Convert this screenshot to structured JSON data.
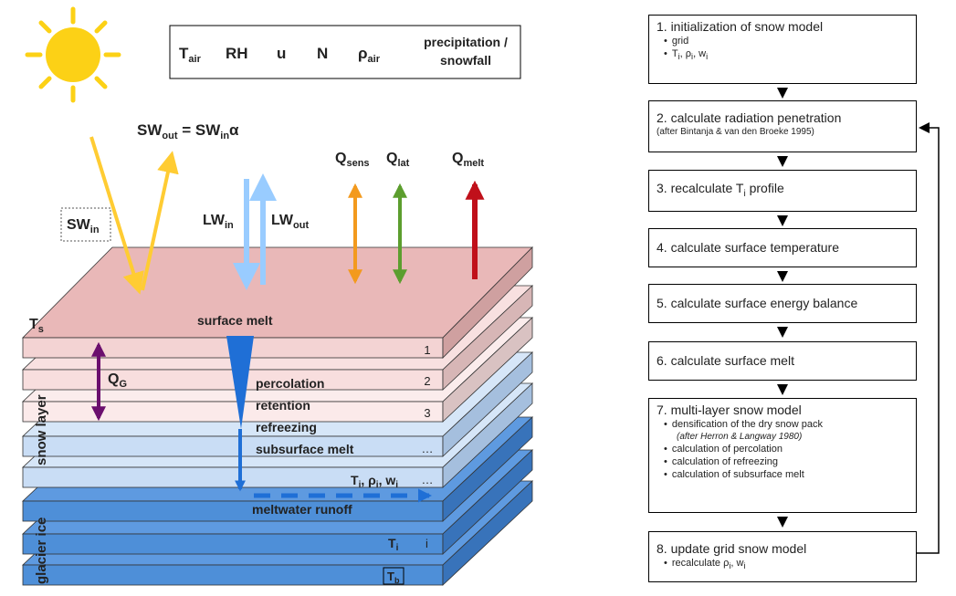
{
  "vars": {
    "tair": "T",
    "tair_sub": "air",
    "rh": "RH",
    "u": "u",
    "n": "N",
    "rho": "ρ",
    "rho_sub": "air",
    "precip1": "precipitation /",
    "precip2": "snowfall"
  },
  "sw_eq": {
    "a": "SW",
    "a_sub": "out",
    "eq": " = SW",
    "eq_sub": "in",
    "alpha": "α"
  },
  "swin": {
    "base": "SW",
    "sub": "in"
  },
  "lwin": {
    "base": "LW",
    "sub": "in"
  },
  "lwout": {
    "base": "LW",
    "sub": "out"
  },
  "qsens": {
    "base": "Q",
    "sub": "sens"
  },
  "qlat": {
    "base": "Q",
    "sub": "lat"
  },
  "qmelt": {
    "base": "Q",
    "sub": "melt"
  },
  "ts": {
    "base": "T",
    "sub": "s"
  },
  "qg": {
    "base": "Q",
    "sub": "G"
  },
  "labels": {
    "surface_melt": "surface melt",
    "percolation": "percolation",
    "retention": "retention",
    "refreezing": "refreezing",
    "subsurface_melt": "subsurface melt",
    "meltwater_runoff": "meltwater runoff",
    "snow_layer": "snow layer",
    "glacier_ice": "glacier ice",
    "tprw": "T",
    "tprw_rest": ", ρ",
    "tprw_rest2": ", w",
    "sub_i": "i",
    "ti": "T",
    "tb": "T",
    "tb_sub": "b",
    "i": "i"
  },
  "layer_numbers": [
    "1",
    "2",
    "3",
    "…",
    "…"
  ],
  "colors": {
    "sun": "#FCD116",
    "sw_arrow": "#FFCC33",
    "lw_arrow": "#99CCFF",
    "qsens": "#F39A1E",
    "qlat": "#5C9E2E",
    "qmelt": "#C0101A",
    "qg": "#6B0F6E",
    "water": "#1F6FD6",
    "surface": "#E9B8B8",
    "snow": "#C9DDF5",
    "ice": "#4E8FD8"
  },
  "flow": {
    "step1": {
      "title": "1. initialization of snow model",
      "items": [
        "grid"
      ],
      "vars": "T"
    },
    "step2": {
      "title": "2. calculate radiation penetration",
      "note": "(after Bintanja & van den Broeke 1995)"
    },
    "step3": {
      "title_a": "3. recalculate T",
      "title_sub": "i",
      "title_b": " profile"
    },
    "step4": {
      "title": "4. calculate surface temperature"
    },
    "step5": {
      "title": "5. calculate surface energy balance"
    },
    "step6": {
      "title": "6. calculate surface melt"
    },
    "step7": {
      "title": "7. multi-layer snow model",
      "items": [
        "densification of the dry snow pack"
      ],
      "note": "(after Herron & Langway 1980)",
      "items2": [
        "calculation of percolation",
        "calculation of refreezing",
        "calculation of subsurface melt"
      ]
    },
    "step8": {
      "title": "8. update grid snow model",
      "item": "recalculate ρ"
    }
  }
}
